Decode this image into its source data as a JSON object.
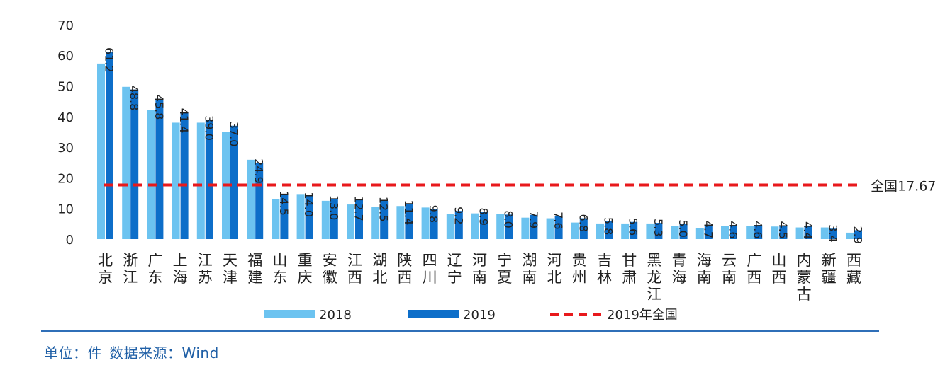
{
  "chart_data": {
    "type": "bar",
    "categories": [
      [
        "北",
        "京"
      ],
      [
        "浙",
        "江"
      ],
      [
        "广",
        "东"
      ],
      [
        "上",
        "海"
      ],
      [
        "江",
        "苏"
      ],
      [
        "天",
        "津"
      ],
      [
        "福",
        "建"
      ],
      [
        "山",
        "东"
      ],
      [
        "重",
        "庆"
      ],
      [
        "安",
        "徽"
      ],
      [
        "江",
        "西"
      ],
      [
        "湖",
        "北"
      ],
      [
        "陕",
        "西"
      ],
      [
        "四",
        "川"
      ],
      [
        "辽",
        "宁"
      ],
      [
        "河",
        "南"
      ],
      [
        "宁",
        "夏"
      ],
      [
        "湖",
        "南"
      ],
      [
        "河",
        "北"
      ],
      [
        "贵",
        "州"
      ],
      [
        "吉",
        "林"
      ],
      [
        "甘",
        "肃"
      ],
      [
        "黑",
        "龙",
        "江"
      ],
      [
        "青",
        "海"
      ],
      [
        "海",
        "南"
      ],
      [
        "云",
        "南"
      ],
      [
        "广",
        "西"
      ],
      [
        "山",
        "西"
      ],
      [
        "内",
        "蒙",
        "古"
      ],
      [
        "新",
        "疆"
      ],
      [
        "西",
        "藏"
      ]
    ],
    "series": [
      {
        "name": "2018",
        "color": "#6cc3f0",
        "values": [
          57.3,
          49.7,
          42.1,
          38.0,
          38.0,
          35.0,
          25.9,
          13.1,
          14.7,
          12.5,
          11.3,
          10.6,
          10.8,
          10.3,
          8.1,
          8.4,
          8.2,
          7.0,
          6.8,
          5.4,
          5.1,
          5.1,
          5.1,
          4.3,
          3.5,
          4.3,
          4.2,
          4.1,
          3.8,
          3.8,
          2.1
        ]
      },
      {
        "name": "2019",
        "color": "#0d6ec9",
        "values": [
          61.2,
          48.8,
          45.8,
          41.4,
          39.0,
          37.0,
          24.9,
          14.5,
          14.0,
          13.0,
          12.7,
          12.5,
          11.4,
          9.8,
          9.2,
          8.9,
          8.0,
          7.9,
          7.6,
          6.8,
          5.8,
          5.6,
          5.3,
          5.0,
          4.7,
          4.6,
          4.6,
          4.5,
          4.4,
          3.4,
          2.9
        ]
      }
    ],
    "data_labels": [
      "61.2",
      "48.8",
      "45.8",
      "41.4",
      "39.0",
      "37.0",
      "24.9",
      "14.5",
      "14.0",
      "13.0",
      "12.7",
      "12.5",
      "11.4",
      "9.8",
      "9.2",
      "8.9",
      "8.0",
      "7.9",
      "7.6",
      "6.8",
      "5.8",
      "5.6",
      "5.3",
      "5.0",
      "4.7",
      "4.6",
      "4.6",
      "4.5",
      "4.4",
      "3.4",
      "2.9"
    ],
    "reference_line": {
      "value": 17.67,
      "label": "全国17.67",
      "legend_label": "2019年全国",
      "color": "#e8191c"
    },
    "yticks": [
      "0",
      "10",
      "20",
      "30",
      "40",
      "50",
      "60",
      "70"
    ],
    "ylim": [
      0,
      70
    ],
    "title": "",
    "xlabel": "",
    "ylabel": "",
    "legend_position": "bottom"
  },
  "footer": {
    "unit": "单位：件",
    "source": "数据来源：Wind"
  }
}
